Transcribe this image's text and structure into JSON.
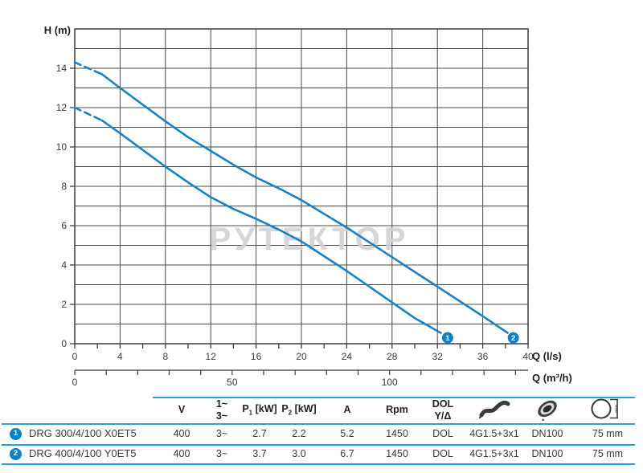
{
  "colors": {
    "curve": "#1b80c4",
    "grid": "#4a4a4a",
    "plot_border": "#3b3b3b",
    "axis_text": "#3d3d3d",
    "table_line": "#2b9fd6",
    "badge": "#0e81c6",
    "watermark": "#d2d2d2"
  },
  "chart_data": {
    "type": "line",
    "title": "",
    "ylabel": "H (m)",
    "xlabel": "Q (l/s)",
    "x2label": "Q (m³/h)",
    "xlim": [
      0,
      40
    ],
    "ylim": [
      0,
      16
    ],
    "grid": "on",
    "grid_x_step": 4,
    "grid_y_step": 1,
    "x_tick_labels": [
      0,
      4,
      8,
      12,
      16,
      20,
      24,
      28,
      32,
      36,
      40
    ],
    "x_minor_tick_step": 2,
    "y_tick_labels": [
      0,
      2,
      4,
      6,
      8,
      10,
      12,
      14
    ],
    "x2_axis": {
      "unit_per_ls": 3.6,
      "tick_step_m3h": 10,
      "max_m3h": 140,
      "labeled_ticks": [
        0,
        50,
        100
      ]
    },
    "watermark": "РУТЕКТОР",
    "series": [
      {
        "name": "1",
        "dash_points": [
          [
            0,
            12.0
          ],
          [
            2.4,
            11.35
          ]
        ],
        "points": [
          [
            2.4,
            11.35
          ],
          [
            4,
            10.7
          ],
          [
            6,
            9.85
          ],
          [
            8,
            9.0
          ],
          [
            10,
            8.2
          ],
          [
            12,
            7.45
          ],
          [
            14,
            6.85
          ],
          [
            16,
            6.35
          ],
          [
            18,
            5.8
          ],
          [
            20,
            5.2
          ],
          [
            22,
            4.45
          ],
          [
            24,
            3.7
          ],
          [
            26,
            2.9
          ],
          [
            28,
            2.1
          ],
          [
            30,
            1.3
          ],
          [
            32.3,
            0.55
          ]
        ],
        "marker": {
          "label": "1",
          "q": 32.9,
          "h": 0.3
        }
      },
      {
        "name": "2",
        "dash_points": [
          [
            0,
            14.3
          ],
          [
            2.4,
            13.7
          ]
        ],
        "points": [
          [
            2.4,
            13.7
          ],
          [
            4,
            13.0
          ],
          [
            6,
            12.15
          ],
          [
            8,
            11.3
          ],
          [
            10,
            10.5
          ],
          [
            12,
            9.8
          ],
          [
            14,
            9.1
          ],
          [
            16,
            8.45
          ],
          [
            18,
            7.9
          ],
          [
            20,
            7.3
          ],
          [
            22,
            6.6
          ],
          [
            24,
            5.9
          ],
          [
            26,
            5.15
          ],
          [
            28,
            4.4
          ],
          [
            30,
            3.65
          ],
          [
            32,
            2.9
          ],
          [
            34,
            2.15
          ],
          [
            36,
            1.4
          ],
          [
            38.2,
            0.55
          ]
        ],
        "marker": {
          "label": "2",
          "q": 38.7,
          "h": 0.3
        }
      }
    ]
  },
  "table": {
    "columns": [
      {
        "kind": "name",
        "label": ""
      },
      {
        "kind": "text",
        "label": "V"
      },
      {
        "kind": "lines",
        "lines": [
          "1~",
          "3~"
        ]
      },
      {
        "kind": "sub",
        "main": "P",
        "sub": "1",
        "unit": "[kW]"
      },
      {
        "kind": "sub",
        "main": "P",
        "sub": "2",
        "unit": "[kW]"
      },
      {
        "kind": "text",
        "label": "A"
      },
      {
        "kind": "text",
        "label": "Rpm"
      },
      {
        "kind": "lines",
        "lines": [
          "DOL",
          "Y/Δ"
        ]
      },
      {
        "kind": "icon",
        "icon": "cable-icon"
      },
      {
        "kind": "icon",
        "icon": "impeller-icon"
      },
      {
        "kind": "icon",
        "icon": "pipe-diameter-icon",
        "icon_text": "mm"
      }
    ],
    "rows": [
      {
        "badge": "1",
        "model": "DRG 300/4/100 X0ET5",
        "values": [
          "400",
          "3~",
          "2.7",
          "2.2",
          "5.2",
          "1450",
          "DOL",
          "4G1.5+3x1",
          "DN100",
          "75 mm"
        ]
      },
      {
        "badge": "2",
        "model": "DRG 400/4/100 Y0ET5",
        "values": [
          "400",
          "3~",
          "3.7",
          "3.0",
          "6.7",
          "1450",
          "DOL",
          "4G1.5+3x1",
          "DN100",
          "75 mm"
        ]
      }
    ]
  }
}
